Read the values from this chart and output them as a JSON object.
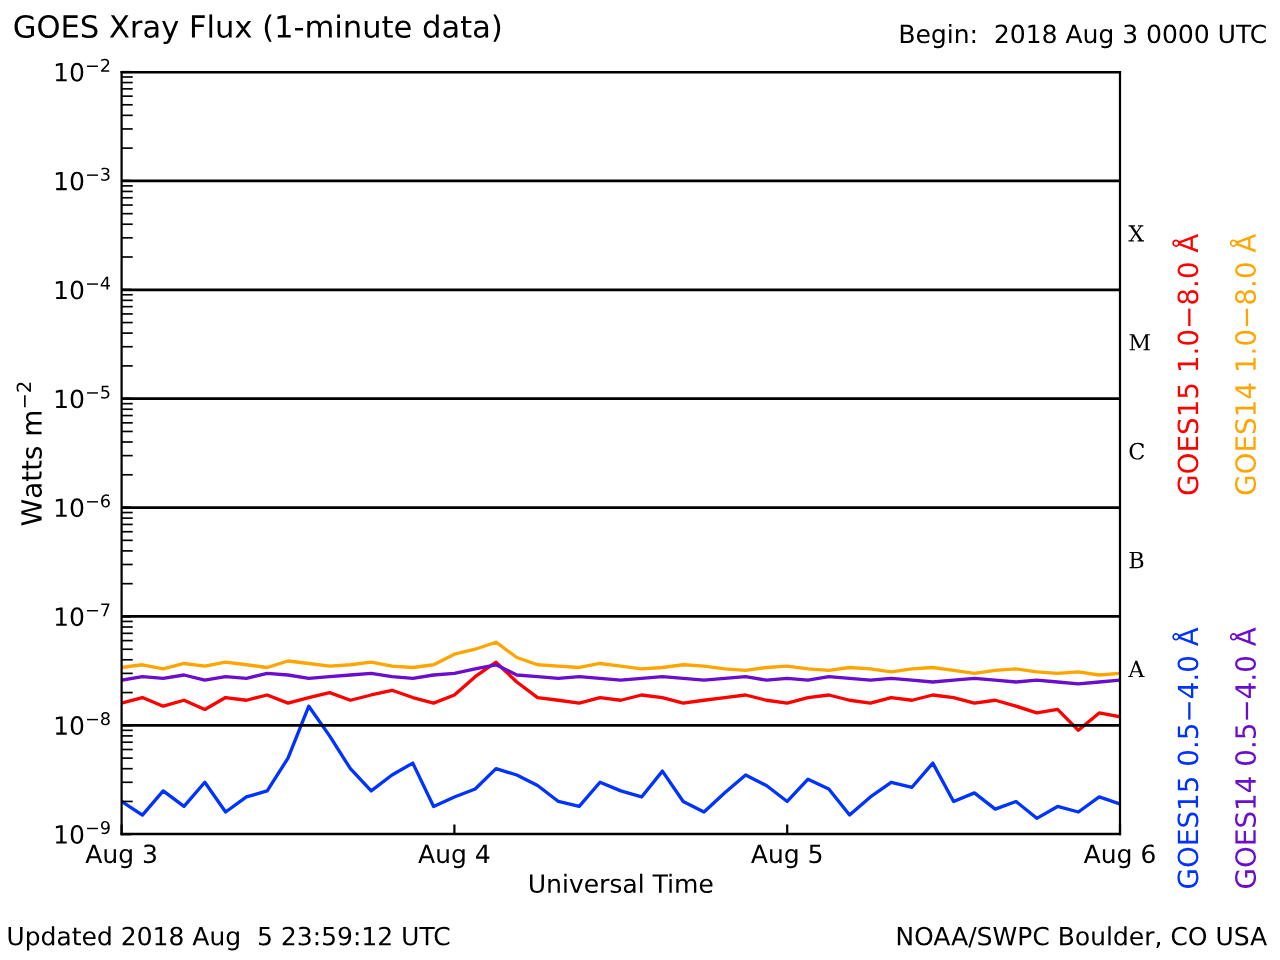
{
  "chart_data": {
    "type": "line",
    "title": "GOES Xray Flux (1-minute data)",
    "subtitle": "Begin:  2018 Aug 3 0000 UTC",
    "xlabel": "Universal Time",
    "ylabel": "Watts m$^{−2}$",
    "annotations": [
      "Updated 2018 Aug  5 23:59:12 UTC",
      "NOAA/SWPC Boulder, CO USA",
      "A",
      "B",
      "C",
      "M",
      "X"
    ],
    "x": [
      "2018-08-03T00:00",
      "2018-08-03T01:30",
      "2018-08-03T03:00",
      "2018-08-03T04:30",
      "2018-08-03T06:00",
      "2018-08-03T07:30",
      "2018-08-03T09:00",
      "2018-08-03T10:30",
      "2018-08-03T12:00",
      "2018-08-03T13:30",
      "2018-08-03T15:00",
      "2018-08-03T16:30",
      "2018-08-03T18:00",
      "2018-08-03T19:30",
      "2018-08-03T21:00",
      "2018-08-03T22:30",
      "2018-08-04T00:00",
      "2018-08-04T01:30",
      "2018-08-04T03:00",
      "2018-08-04T04:30",
      "2018-08-04T06:00",
      "2018-08-04T07:30",
      "2018-08-04T09:00",
      "2018-08-04T10:30",
      "2018-08-04T12:00",
      "2018-08-04T13:30",
      "2018-08-04T15:00",
      "2018-08-04T16:30",
      "2018-08-04T18:00",
      "2018-08-04T19:30",
      "2018-08-04T21:00",
      "2018-08-04T22:30",
      "2018-08-05T00:00",
      "2018-08-05T01:30",
      "2018-08-05T03:00",
      "2018-08-05T04:30",
      "2018-08-05T06:00",
      "2018-08-05T07:30",
      "2018-08-05T09:00",
      "2018-08-05T10:30",
      "2018-08-05T12:00",
      "2018-08-05T13:30",
      "2018-08-05T15:00",
      "2018-08-05T16:30",
      "2018-08-05T18:00",
      "2018-08-05T19:30",
      "2018-08-05T21:00",
      "2018-08-05T22:30",
      "2018-08-06T00:00"
    ],
    "series": [
      {
        "name": "GOES15 1.0−8.0 Å",
        "color": "#ff0000",
        "values": [
          1.6e-08,
          1.8e-08,
          1.5e-08,
          1.7e-08,
          1.4e-08,
          1.8e-08,
          1.7e-08,
          1.9e-08,
          1.6e-08,
          1.8e-08,
          2e-08,
          1.7e-08,
          1.9e-08,
          2.1e-08,
          1.8e-08,
          1.6e-08,
          1.9e-08,
          2.8e-08,
          3.8e-08,
          2.5e-08,
          1.8e-08,
          1.7e-08,
          1.6e-08,
          1.8e-08,
          1.7e-08,
          1.9e-08,
          1.8e-08,
          1.6e-08,
          1.7e-08,
          1.8e-08,
          1.9e-08,
          1.7e-08,
          1.6e-08,
          1.8e-08,
          1.9e-08,
          1.7e-08,
          1.6e-08,
          1.8e-08,
          1.7e-08,
          1.9e-08,
          1.8e-08,
          1.6e-08,
          1.7e-08,
          1.5e-08,
          1.3e-08,
          1.4e-08,
          9e-09,
          1.3e-08,
          1.2e-08
        ]
      },
      {
        "name": "GOES14 1.0−8.0 Å",
        "color": "#ffa500",
        "values": [
          3.4e-08,
          3.6e-08,
          3.3e-08,
          3.7e-08,
          3.5e-08,
          3.8e-08,
          3.6e-08,
          3.4e-08,
          3.9e-08,
          3.7e-08,
          3.5e-08,
          3.6e-08,
          3.8e-08,
          3.5e-08,
          3.4e-08,
          3.6e-08,
          4.5e-08,
          5e-08,
          5.8e-08,
          4.2e-08,
          3.6e-08,
          3.5e-08,
          3.4e-08,
          3.7e-08,
          3.5e-08,
          3.3e-08,
          3.4e-08,
          3.6e-08,
          3.5e-08,
          3.3e-08,
          3.2e-08,
          3.4e-08,
          3.5e-08,
          3.3e-08,
          3.2e-08,
          3.4e-08,
          3.3e-08,
          3.1e-08,
          3.3e-08,
          3.4e-08,
          3.2e-08,
          3e-08,
          3.2e-08,
          3.3e-08,
          3.1e-08,
          3e-08,
          3.1e-08,
          2.9e-08,
          3e-08
        ]
      },
      {
        "name": "GOES15 0.5−4.0 Å",
        "color": "#0033ff",
        "values": [
          2e-09,
          1.5e-09,
          2.5e-09,
          1.8e-09,
          3e-09,
          1.6e-09,
          2.2e-09,
          2.5e-09,
          5e-09,
          1.5e-08,
          8e-09,
          4e-09,
          2.5e-09,
          3.5e-09,
          4.5e-09,
          1.8e-09,
          2.2e-09,
          2.6e-09,
          4e-09,
          3.5e-09,
          2.8e-09,
          2e-09,
          1.8e-09,
          3e-09,
          2.5e-09,
          2.2e-09,
          3.8e-09,
          2e-09,
          1.6e-09,
          2.4e-09,
          3.5e-09,
          2.8e-09,
          2e-09,
          3.2e-09,
          2.6e-09,
          1.5e-09,
          2.2e-09,
          3e-09,
          2.7e-09,
          4.5e-09,
          2e-09,
          2.4e-09,
          1.7e-09,
          2e-09,
          1.4e-09,
          1.8e-09,
          1.6e-09,
          2.2e-09,
          1.9e-09
        ]
      },
      {
        "name": "GOES14 0.5−4.0 Å",
        "color": "#6a0dcc",
        "values": [
          2.6e-08,
          2.8e-08,
          2.7e-08,
          2.9e-08,
          2.6e-08,
          2.8e-08,
          2.7e-08,
          3e-08,
          2.9e-08,
          2.7e-08,
          2.8e-08,
          2.9e-08,
          3e-08,
          2.8e-08,
          2.7e-08,
          2.9e-08,
          3e-08,
          3.3e-08,
          3.6e-08,
          2.9e-08,
          2.8e-08,
          2.7e-08,
          2.8e-08,
          2.7e-08,
          2.6e-08,
          2.7e-08,
          2.8e-08,
          2.7e-08,
          2.6e-08,
          2.7e-08,
          2.8e-08,
          2.6e-08,
          2.7e-08,
          2.6e-08,
          2.8e-08,
          2.7e-08,
          2.6e-08,
          2.7e-08,
          2.6e-08,
          2.5e-08,
          2.6e-08,
          2.7e-08,
          2.6e-08,
          2.5e-08,
          2.6e-08,
          2.5e-08,
          2.4e-08,
          2.5e-08,
          2.6e-08
        ]
      }
    ],
    "log": "y",
    "grid": "y",
    "legend": "right",
    "xlim": [
      "2018-08-03",
      "2018-08-06"
    ],
    "xticks": [
      {
        "value": "2018-08-03",
        "label": "Aug 3"
      },
      {
        "value": "2018-08-04",
        "label": "Aug 4"
      },
      {
        "value": "2018-08-05",
        "label": "Aug 5"
      },
      {
        "value": "2018-08-06",
        "label": "Aug 6"
      }
    ],
    "ylim": [
      1e-09,
      0.01
    ],
    "yticks": [
      {
        "value": 1e-09,
        "label": "10$^{−9}$"
      },
      {
        "value": 1e-08,
        "label": "10$^{−8}$"
      },
      {
        "value": 1e-07,
        "label": "10$^{−7}$"
      },
      {
        "value": 1e-06,
        "label": "10$^{−6}$"
      },
      {
        "value": 1e-05,
        "label": "10$^{−5}$"
      },
      {
        "value": 0.0001,
        "label": "10$^{−4}$"
      },
      {
        "value": 0.001,
        "label": "10$^{−3}$"
      },
      {
        "value": 0.01,
        "label": "10$^{−2}$"
      }
    ]
  }
}
